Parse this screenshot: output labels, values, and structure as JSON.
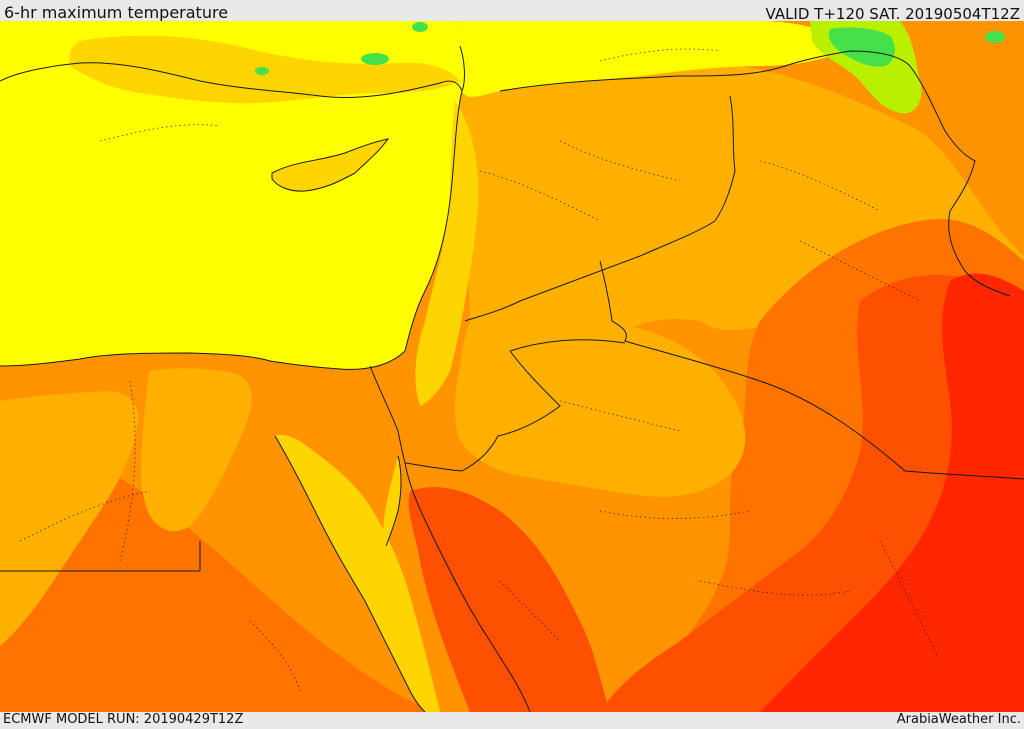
{
  "header": {
    "title": "6-hr maximum temperature",
    "valid_time": "VALID T+120 SAT. 20190504T12Z"
  },
  "footer": {
    "model_run": "ECMWF MODEL RUN: 20190429T12Z",
    "credit": "ArabiaWeather Inc."
  },
  "map": {
    "type": "temperature-shaded-map",
    "variable": "6-hr maximum temperature",
    "region_shown": "Eastern Mediterranean, Levant, Egypt, Sinai, northern Arabia, Iraq",
    "colors": {
      "cool_green": "#46e04a",
      "yellow_green": "#b8f000",
      "yellow": "#ffff00",
      "light_orange": "#ffd500",
      "orange_light": "#ffb000",
      "orange": "#ff9400",
      "orange_deep": "#ff7400",
      "red_orange": "#ff4f00",
      "red": "#ff2600",
      "border": "#1a1a1a"
    }
  }
}
